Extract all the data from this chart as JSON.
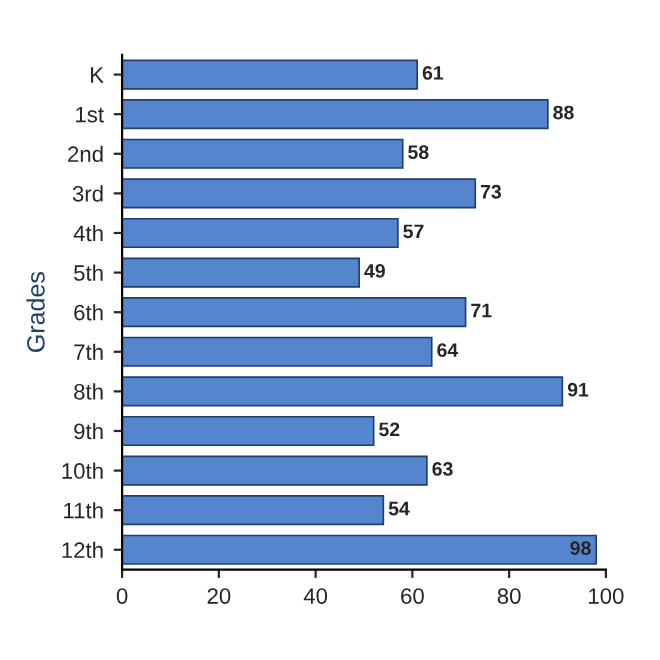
{
  "chart_data": {
    "type": "bar",
    "orientation": "horizontal",
    "ylabel": "Grades",
    "categories": [
      "K",
      "1st",
      "2nd",
      "3rd",
      "4th",
      "5th",
      "6th",
      "7th",
      "8th",
      "9th",
      "10th",
      "11th",
      "12th"
    ],
    "values": [
      61,
      88,
      58,
      73,
      57,
      49,
      71,
      64,
      91,
      52,
      63,
      54,
      98
    ],
    "color": "#5585cc",
    "xlim": [
      0,
      100
    ],
    "xticks": [
      0,
      20,
      40,
      60,
      80,
      100
    ],
    "data_labels": true
  }
}
